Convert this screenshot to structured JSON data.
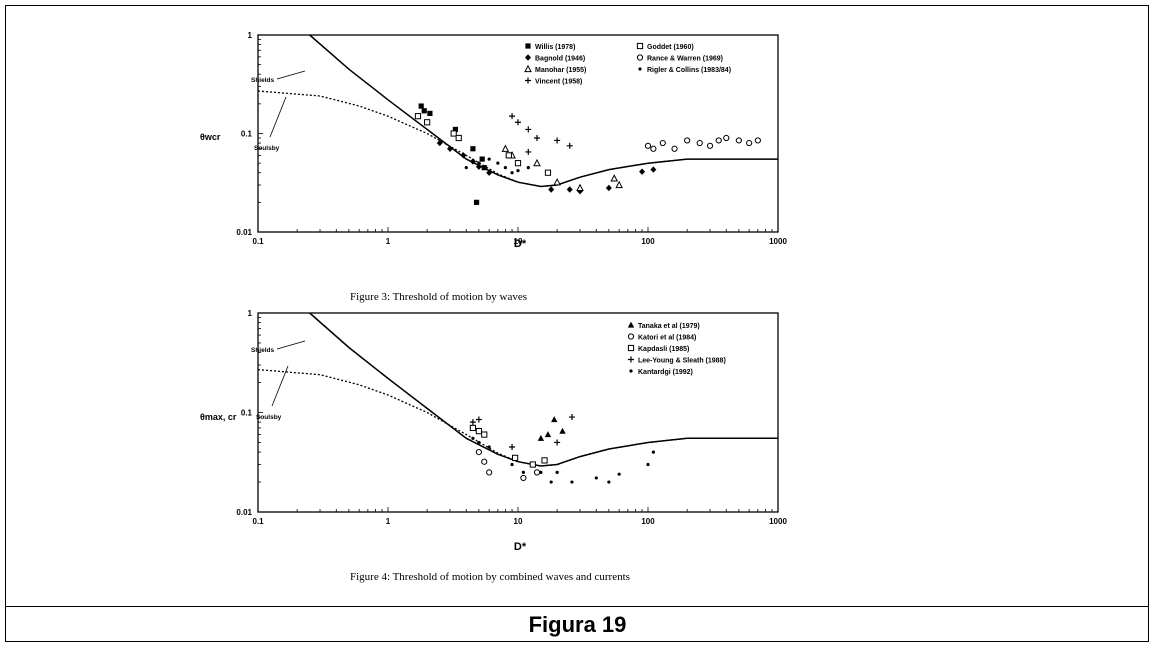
{
  "caption": "Figura 19",
  "chart_data": [
    {
      "type": "scatter",
      "title": "Figure 3: Threshold of motion by waves",
      "xlabel": "D*",
      "ylabel": "θwcr",
      "x_scale": "log",
      "y_scale": "log",
      "xlim": [
        0.1,
        1000
      ],
      "ylim": [
        0.01,
        1
      ],
      "x_ticks": [
        "0.1",
        "1",
        "10",
        "100",
        "1000"
      ],
      "y_ticks": [
        "0.01",
        "0.1",
        "1"
      ],
      "curves": [
        {
          "name": "Shields",
          "style": "solid",
          "points": [
            [
              0.25,
              1
            ],
            [
              0.5,
              0.45
            ],
            [
              1,
              0.22
            ],
            [
              2,
              0.11
            ],
            [
              4,
              0.055
            ],
            [
              7,
              0.038
            ],
            [
              10,
              0.032
            ],
            [
              15,
              0.029
            ],
            [
              20,
              0.03
            ],
            [
              30,
              0.036
            ],
            [
              50,
              0.043
            ],
            [
              100,
              0.05
            ],
            [
              200,
              0.055
            ],
            [
              1000,
              0.055
            ]
          ]
        },
        {
          "name": "Soulsby",
          "style": "dotted",
          "points": [
            [
              0.1,
              0.27
            ],
            [
              0.3,
              0.24
            ],
            [
              0.6,
              0.19
            ],
            [
              1,
              0.15
            ],
            [
              2,
              0.1
            ],
            [
              4,
              0.06
            ],
            [
              7,
              0.039
            ],
            [
              10,
              0.032
            ],
            [
              15,
              0.029
            ],
            [
              20,
              0.03
            ],
            [
              30,
              0.036
            ],
            [
              50,
              0.043
            ],
            [
              100,
              0.05
            ],
            [
              200,
              0.055
            ],
            [
              1000,
              0.055
            ]
          ]
        }
      ],
      "series": [
        {
          "name": "Willis (1978)",
          "marker": "square-filled",
          "points": [
            [
              1.8,
              0.19
            ],
            [
              1.9,
              0.17
            ],
            [
              2.1,
              0.16
            ],
            [
              3.3,
              0.11
            ],
            [
              4.5,
              0.07
            ],
            [
              5.3,
              0.055
            ],
            [
              4.8,
              0.02
            ],
            [
              5.5,
              0.045
            ]
          ]
        },
        {
          "name": "Bagnold (1946)",
          "marker": "diamond",
          "points": [
            [
              2.5,
              0.08
            ],
            [
              3,
              0.07
            ],
            [
              3.8,
              0.06
            ],
            [
              4.5,
              0.052
            ],
            [
              5,
              0.046
            ],
            [
              6,
              0.04
            ],
            [
              18,
              0.027
            ],
            [
              25,
              0.027
            ],
            [
              30,
              0.026
            ],
            [
              50,
              0.028
            ],
            [
              90,
              0.041
            ],
            [
              110,
              0.043
            ]
          ]
        },
        {
          "name": "Manohar (1955)",
          "marker": "triangle",
          "points": [
            [
              8,
              0.07
            ],
            [
              9,
              0.06
            ],
            [
              14,
              0.05
            ],
            [
              20,
              0.032
            ],
            [
              30,
              0.028
            ],
            [
              55,
              0.035
            ],
            [
              60,
              0.03
            ]
          ]
        },
        {
          "name": "Vincent (1958)",
          "marker": "plus",
          "points": [
            [
              9,
              0.15
            ],
            [
              10,
              0.13
            ],
            [
              12,
              0.11
            ],
            [
              14,
              0.09
            ],
            [
              20,
              0.085
            ],
            [
              25,
              0.075
            ],
            [
              12,
              0.065
            ]
          ]
        },
        {
          "name": "Goddet (1960)",
          "marker": "square-open",
          "points": [
            [
              1.7,
              0.15
            ],
            [
              2,
              0.13
            ],
            [
              3.2,
              0.1
            ],
            [
              3.5,
              0.09
            ],
            [
              8.5,
              0.06
            ],
            [
              10,
              0.05
            ],
            [
              17,
              0.04
            ]
          ]
        },
        {
          "name": "Rance & Warren (1969)",
          "marker": "circle-open",
          "points": [
            [
              100,
              0.075
            ],
            [
              110,
              0.07
            ],
            [
              130,
              0.08
            ],
            [
              160,
              0.07
            ],
            [
              200,
              0.085
            ],
            [
              250,
              0.08
            ],
            [
              300,
              0.075
            ],
            [
              350,
              0.085
            ],
            [
              400,
              0.09
            ],
            [
              500,
              0.085
            ],
            [
              600,
              0.08
            ],
            [
              700,
              0.085
            ]
          ]
        },
        {
          "name": "Rigler & Collins (1983/84)",
          "marker": "dot",
          "points": [
            [
              4,
              0.045
            ],
            [
              5,
              0.05
            ],
            [
              6,
              0.055
            ],
            [
              7,
              0.05
            ],
            [
              8,
              0.045
            ],
            [
              9,
              0.04
            ],
            [
              10,
              0.042
            ],
            [
              12,
              0.045
            ]
          ]
        }
      ],
      "annotations": [
        "Shields",
        "Soulsby"
      ]
    },
    {
      "type": "scatter",
      "title": "Figure 4: Threshold of motion by combined waves and currents",
      "xlabel": "D*",
      "ylabel": "θmax, cr",
      "x_scale": "log",
      "y_scale": "log",
      "xlim": [
        0.1,
        1000
      ],
      "ylim": [
        0.01,
        1
      ],
      "x_ticks": [
        "0.1",
        "1",
        "10",
        "100",
        "1000"
      ],
      "y_ticks": [
        "0.01",
        "0.1",
        "1"
      ],
      "curves": [
        {
          "name": "Shields",
          "style": "solid",
          "points": [
            [
              0.25,
              1
            ],
            [
              0.5,
              0.45
            ],
            [
              1,
              0.22
            ],
            [
              2,
              0.11
            ],
            [
              4,
              0.055
            ],
            [
              7,
              0.038
            ],
            [
              10,
              0.032
            ],
            [
              15,
              0.029
            ],
            [
              20,
              0.03
            ],
            [
              30,
              0.036
            ],
            [
              50,
              0.043
            ],
            [
              100,
              0.05
            ],
            [
              200,
              0.055
            ],
            [
              1000,
              0.055
            ]
          ]
        },
        {
          "name": "Soulsby",
          "style": "dotted",
          "points": [
            [
              0.1,
              0.27
            ],
            [
              0.3,
              0.24
            ],
            [
              0.6,
              0.19
            ],
            [
              1,
              0.15
            ],
            [
              2,
              0.1
            ],
            [
              4,
              0.06
            ],
            [
              7,
              0.039
            ],
            [
              10,
              0.032
            ],
            [
              15,
              0.029
            ],
            [
              20,
              0.03
            ],
            [
              30,
              0.036
            ],
            [
              50,
              0.043
            ],
            [
              100,
              0.05
            ],
            [
              200,
              0.055
            ],
            [
              1000,
              0.055
            ]
          ]
        }
      ],
      "series": [
        {
          "name": "Tanaka et al (1979)",
          "marker": "triangle-filled",
          "points": [
            [
              15,
              0.055
            ],
            [
              17,
              0.06
            ],
            [
              19,
              0.085
            ],
            [
              22,
              0.065
            ]
          ]
        },
        {
          "name": "Katori et al (1984)",
          "marker": "circle-open",
          "points": [
            [
              5,
              0.04
            ],
            [
              5.5,
              0.032
            ],
            [
              6,
              0.025
            ],
            [
              11,
              0.022
            ],
            [
              14,
              0.025
            ]
          ]
        },
        {
          "name": "Kapdasli (1985)",
          "marker": "square-open",
          "points": [
            [
              4.5,
              0.07
            ],
            [
              5,
              0.065
            ],
            [
              5.5,
              0.06
            ],
            [
              9.5,
              0.035
            ],
            [
              13,
              0.03
            ],
            [
              16,
              0.033
            ]
          ]
        },
        {
          "name": "Lee-Young & Sleath (1988)",
          "marker": "plus",
          "points": [
            [
              4.5,
              0.08
            ],
            [
              5,
              0.085
            ],
            [
              9,
              0.045
            ],
            [
              20,
              0.05
            ],
            [
              26,
              0.09
            ]
          ]
        },
        {
          "name": "Kantardgi (1992)",
          "marker": "dot",
          "points": [
            [
              4.5,
              0.055
            ],
            [
              5,
              0.05
            ],
            [
              6,
              0.045
            ],
            [
              9,
              0.03
            ],
            [
              11,
              0.025
            ],
            [
              15,
              0.025
            ],
            [
              18,
              0.02
            ],
            [
              20,
              0.025
            ],
            [
              26,
              0.02
            ],
            [
              40,
              0.022
            ],
            [
              50,
              0.02
            ],
            [
              60,
              0.024
            ],
            [
              100,
              0.03
            ],
            [
              110,
              0.04
            ]
          ]
        }
      ],
      "annotations": [
        "Shields",
        "Soulsby"
      ]
    }
  ]
}
